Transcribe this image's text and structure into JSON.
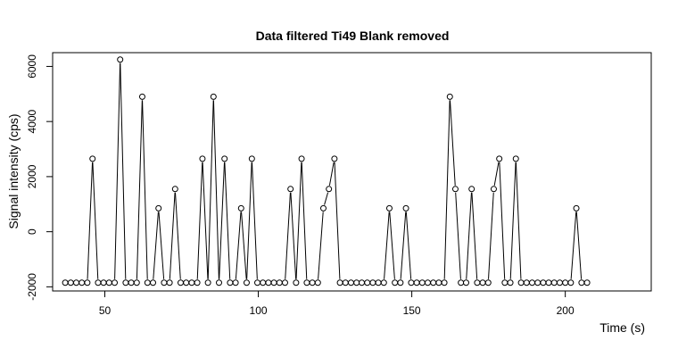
{
  "chart_data": {
    "type": "line",
    "title": "Data filtered Ti49 Blank removed",
    "xlabel": "Time (s)",
    "ylabel": "Signal intensity (cps)",
    "xlim": [
      33,
      228
    ],
    "ylim": [
      -2150,
      6500
    ],
    "xticks": [
      50,
      100,
      150,
      200
    ],
    "yticks": [
      -2000,
      0,
      2000,
      4000,
      6000
    ],
    "grid": false,
    "legend": "none",
    "style": "line-with-open-circle-points",
    "colors": {
      "line": "#000000",
      "point_stroke": "#000000",
      "point_fill": "#ffffff",
      "background": "#ffffff"
    },
    "series": [
      {
        "x": [
          37.1,
          38.9,
          40.7,
          42.5,
          44.3,
          46.0,
          47.8,
          49.6,
          51.4,
          53.2,
          55.0,
          56.8,
          58.6,
          60.4,
          62.2,
          63.9,
          65.7,
          67.5,
          69.3,
          71.1,
          72.9,
          74.7,
          76.5,
          78.3,
          80.1,
          81.8,
          83.6,
          85.4,
          87.2,
          89.0,
          90.8,
          92.6,
          94.4,
          96.2,
          97.9,
          99.7,
          101.5,
          103.3,
          105.1,
          106.9,
          108.7,
          110.5,
          112.3,
          114.1,
          115.8,
          117.6,
          119.4,
          121.2,
          123.0,
          124.8,
          126.6,
          128.4,
          130.2,
          132.0,
          133.7,
          135.5,
          137.3,
          139.1,
          140.9,
          142.7,
          144.5,
          146.3,
          148.1,
          149.8,
          151.6,
          153.4,
          155.2,
          157.0,
          158.8,
          160.6,
          162.4,
          164.2,
          166.0,
          167.7,
          169.5,
          171.3,
          173.1,
          174.9,
          176.7,
          178.5,
          180.3,
          182.1,
          183.9,
          185.6,
          187.4,
          189.2,
          191.0,
          192.8,
          194.6,
          196.4,
          198.2,
          200.0,
          201.8,
          203.6,
          205.3,
          207.1
        ],
        "y": [
          -1850,
          -1850,
          -1850,
          -1850,
          -1850,
          2650,
          -1850,
          -1850,
          -1850,
          -1850,
          6250,
          -1850,
          -1850,
          -1850,
          4900,
          -1850,
          -1850,
          850,
          -1850,
          -1850,
          1550,
          -1850,
          -1850,
          -1850,
          -1850,
          2650,
          -1850,
          4900,
          -1850,
          2650,
          -1850,
          -1850,
          850,
          -1850,
          2650,
          -1850,
          -1850,
          -1850,
          -1850,
          -1850,
          -1850,
          1550,
          -1850,
          2650,
          -1850,
          -1850,
          -1850,
          850,
          1550,
          2650,
          -1850,
          -1850,
          -1850,
          -1850,
          -1850,
          -1850,
          -1850,
          -1850,
          -1850,
          850,
          -1850,
          -1850,
          850,
          -1850,
          -1850,
          -1850,
          -1850,
          -1850,
          -1850,
          -1850,
          4900,
          1550,
          -1850,
          -1850,
          1550,
          -1850,
          -1850,
          -1850,
          1550,
          2650,
          -1850,
          -1850,
          2650,
          -1850,
          -1850,
          -1850,
          -1850,
          -1850,
          -1850,
          -1850,
          -1850,
          -1850,
          -1850,
          850,
          -1850,
          -1850
        ]
      }
    ]
  }
}
